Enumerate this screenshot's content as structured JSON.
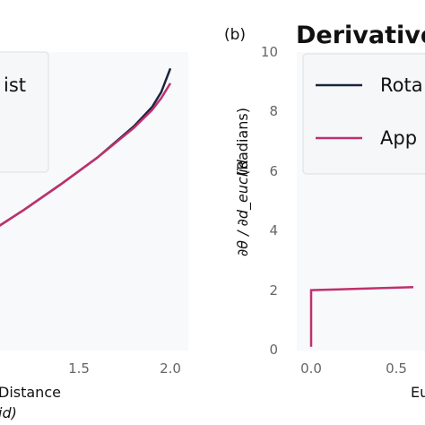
{
  "colors": {
    "rotated": "#1a2340",
    "approx": "#c0306e",
    "plot_bg": "#f7f9fa",
    "legend_bg": "#f5f7f8",
    "legend_border": "#dcdfe2"
  },
  "chart_data": [
    {
      "type": "line",
      "panel_label": "",
      "title": "",
      "xlabel": "Distance",
      "xlabel_sub": "id)",
      "ylabel": "",
      "x_ticks": [
        "1.5",
        "2.0"
      ],
      "xlim": [
        1.0,
        2.05
      ],
      "ylim": [
        0,
        10
      ],
      "legend": {
        "placement": "top-left",
        "entries": [
          "ist"
        ]
      },
      "series": [
        {
          "name": "rotated",
          "x": [
            1.0,
            1.2,
            1.4,
            1.6,
            1.8,
            1.9,
            1.95,
            2.0
          ],
          "y": [
            3.9,
            4.7,
            5.55,
            6.45,
            7.5,
            8.15,
            8.65,
            9.45
          ]
        },
        {
          "name": "approx",
          "x": [
            1.0,
            1.2,
            1.4,
            1.6,
            1.8,
            1.9,
            1.95,
            2.0
          ],
          "y": [
            3.9,
            4.7,
            5.55,
            6.45,
            7.45,
            8.05,
            8.45,
            8.95
          ]
        }
      ]
    },
    {
      "type": "line",
      "panel_label": "(b)",
      "title": "Derivative",
      "xlabel": "Eu",
      "ylabel": "(Radians)",
      "ylabel_frac": "∂θ / ∂d_euclid",
      "y_ticks": [
        "0",
        "2",
        "4",
        "6",
        "8",
        "10"
      ],
      "x_ticks": [
        "0.0",
        "0.5"
      ],
      "xlim": [
        -0.1,
        0.6
      ],
      "ylim": [
        0,
        10
      ],
      "legend": {
        "placement": "top-left",
        "entries": [
          "Rota",
          "App"
        ]
      },
      "series": [
        {
          "name": "approx",
          "x": [
            0.0,
            0.0,
            0.6
          ],
          "y": [
            0.1,
            2.0,
            2.1
          ]
        }
      ]
    }
  ]
}
